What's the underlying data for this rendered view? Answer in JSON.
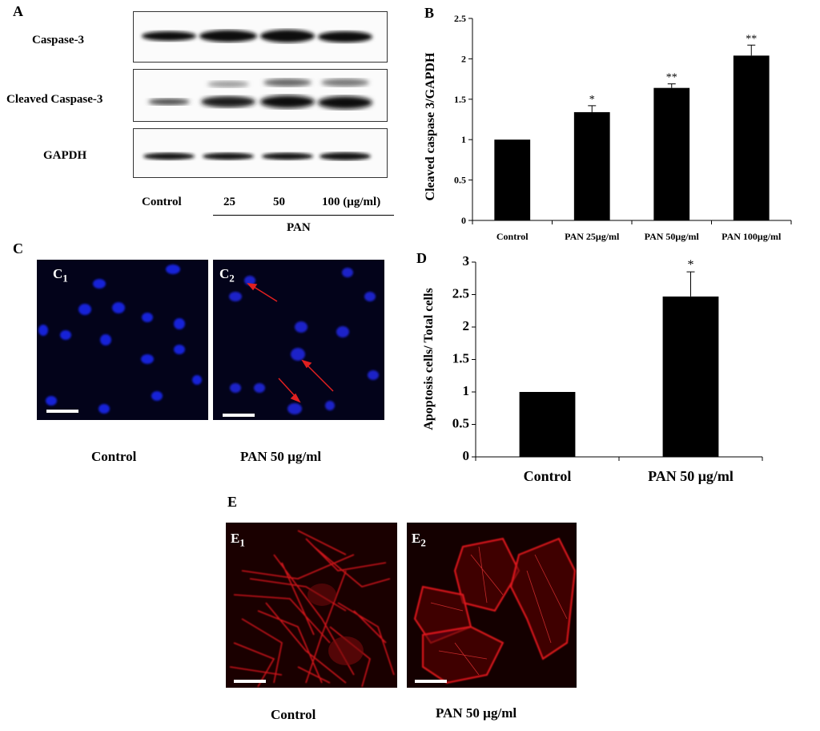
{
  "panel_a": {
    "letter": "A",
    "rows": [
      {
        "label": "Caspase-3"
      },
      {
        "label": "Cleaved Caspase-3"
      },
      {
        "label": "GAPDH"
      }
    ],
    "lanes": [
      "Control",
      "25",
      "50",
      "100 (µg/ml)"
    ],
    "group_label": "PAN"
  },
  "panel_b": {
    "letter": "B"
  },
  "panel_c": {
    "letter": "C",
    "images": [
      {
        "tag": "C",
        "sub": "1",
        "caption": "Control"
      },
      {
        "tag": "C",
        "sub": "2",
        "caption": "PAN 50 µg/ml"
      }
    ]
  },
  "panel_d": {
    "letter": "D"
  },
  "panel_e": {
    "letter": "E",
    "images": [
      {
        "tag": "E",
        "sub": "1",
        "caption": "Control"
      },
      {
        "tag": "E",
        "sub": "2",
        "caption": "PAN 50 µg/ml"
      }
    ]
  },
  "chart_data": [
    {
      "type": "bar",
      "panel": "B",
      "categories": [
        "Control",
        "PAN 25μg/ml",
        "PAN 50μg/ml",
        "PAN 100μg/ml"
      ],
      "values": [
        1.0,
        1.34,
        1.64,
        2.04
      ],
      "errors": [
        0.0,
        0.08,
        0.05,
        0.13
      ],
      "significance": [
        "",
        "*",
        "**",
        "**"
      ],
      "ylabel": "Cleaved  caspase 3/GAPDH",
      "xlabel": "",
      "ylim": [
        0,
        2.5
      ],
      "yticks": [
        "0",
        "0.5",
        "1",
        "1.5",
        "2",
        "2.5"
      ],
      "bar_color": "#000000",
      "grid": false
    },
    {
      "type": "bar",
      "panel": "D",
      "categories": [
        "Control",
        "PAN 50 μg/ml"
      ],
      "values": [
        1.0,
        2.47
      ],
      "errors": [
        0.0,
        0.38
      ],
      "significance": [
        "",
        "*"
      ],
      "ylabel": "Apoptosis cells/ Total cells",
      "xlabel": "",
      "ylim": [
        0,
        3
      ],
      "yticks": [
        "0",
        "0.5",
        "1",
        "1.5",
        "2",
        "2.5",
        "3"
      ],
      "bar_color": "#000000",
      "grid": false
    }
  ]
}
